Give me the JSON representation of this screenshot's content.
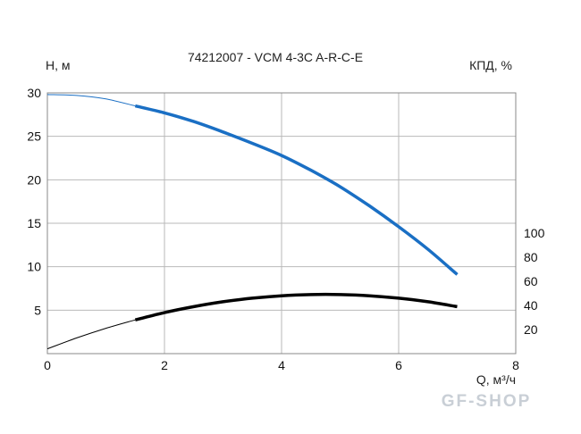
{
  "chart_data": {
    "type": "line",
    "title": "74212007 - VCM 4-3C A-R-C-E",
    "ylabel": "H, м",
    "y2label": "КПД, %",
    "xlabel": "Q, м³/ч",
    "xlim": [
      0,
      8
    ],
    "ylim": [
      0,
      30
    ],
    "y2lim": [
      0,
      100
    ],
    "x_ticks": [
      "0",
      "2",
      "4",
      "6",
      "8"
    ],
    "y_ticks": [
      "5",
      "10",
      "15",
      "20",
      "25",
      "30"
    ],
    "y2_ticks": [
      "20",
      "40",
      "60",
      "80",
      "100"
    ],
    "grid": true,
    "series": [
      {
        "axis": "left",
        "color": "#1a6fc4",
        "x": [
          0,
          0.5,
          1.0,
          1.5,
          2.0,
          2.5,
          3.0,
          3.5,
          4.0,
          4.5,
          5.0,
          5.5,
          6.0,
          6.5,
          7.0
        ],
        "y": [
          29.8,
          29.7,
          29.3,
          28.5,
          27.7,
          26.7,
          25.5,
          24.2,
          22.8,
          21.1,
          19.2,
          17.0,
          14.6,
          12.0,
          9.1
        ],
        "operating_from_x": 1.5
      },
      {
        "axis": "right",
        "color": "#000000",
        "x": [
          0,
          0.5,
          1.0,
          1.5,
          2.0,
          2.5,
          3.0,
          3.5,
          4.0,
          4.5,
          5.0,
          5.5,
          6.0,
          6.5,
          7.0
        ],
        "y": [
          4,
          13,
          21,
          28,
          34,
          39,
          43,
          46,
          48,
          49,
          49,
          48,
          46,
          43,
          39
        ],
        "operating_from_x": 1.5
      }
    ]
  },
  "watermark": "GF-SHOP"
}
